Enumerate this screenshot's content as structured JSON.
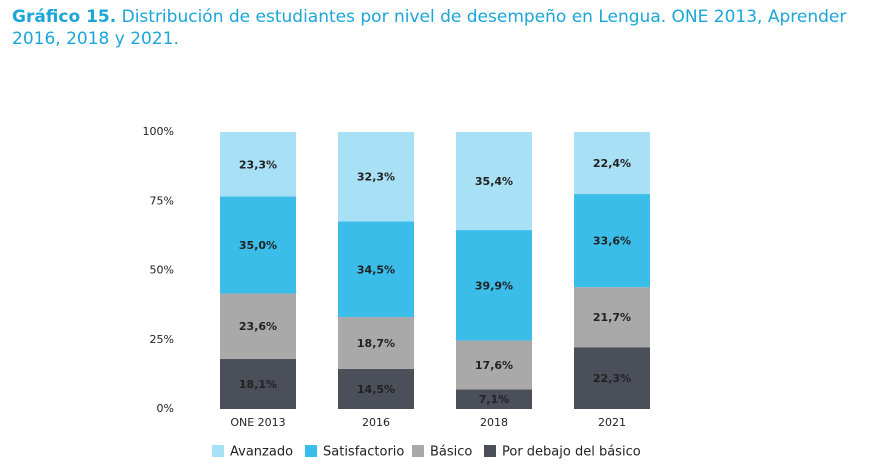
{
  "chart_data": {
    "type": "stacked_bar",
    "title_label": "Gráfico 15.",
    "title": "Distribución de estudiantes por nivel de desempeño en Lengua. ONE 2013, Aprender 2016, 2018 y 2021.",
    "categories": [
      "ONE 2013",
      "2016",
      "2018",
      "2021"
    ],
    "series": [
      {
        "name": "Avanzado",
        "color": "#a8e0f5",
        "values": [
          23.3,
          32.3,
          35.4,
          22.4
        ],
        "value_labels": [
          "23,3%",
          "32,3%",
          "35,4%",
          "22,4%"
        ]
      },
      {
        "name": "Satisfactorio",
        "color": "#3bbdea",
        "values": [
          35.0,
          34.5,
          39.9,
          33.6
        ],
        "value_labels": [
          "35,0%",
          "34,5%",
          "39,9%",
          "33,6%"
        ]
      },
      {
        "name": "Básico",
        "color": "#a9a9a9",
        "values": [
          23.6,
          18.7,
          17.6,
          21.7
        ],
        "value_labels": [
          "23,6%",
          "18,7%",
          "17,6%",
          "21,7%"
        ]
      },
      {
        "name": "Por debajo del básico",
        "color": "#4b4f5a",
        "values": [
          18.1,
          14.5,
          7.1,
          22.3
        ],
        "value_labels": [
          "18,1%",
          "14,5%",
          "7,1%",
          "22,3%"
        ]
      }
    ],
    "ylim": [
      0,
      100
    ],
    "yticks": [
      {
        "value": 0,
        "label": "0%"
      },
      {
        "value": 25,
        "label": "25%"
      },
      {
        "value": 50,
        "label": "50%"
      },
      {
        "value": 75,
        "label": "75%"
      },
      {
        "value": 100,
        "label": "100%"
      }
    ]
  }
}
